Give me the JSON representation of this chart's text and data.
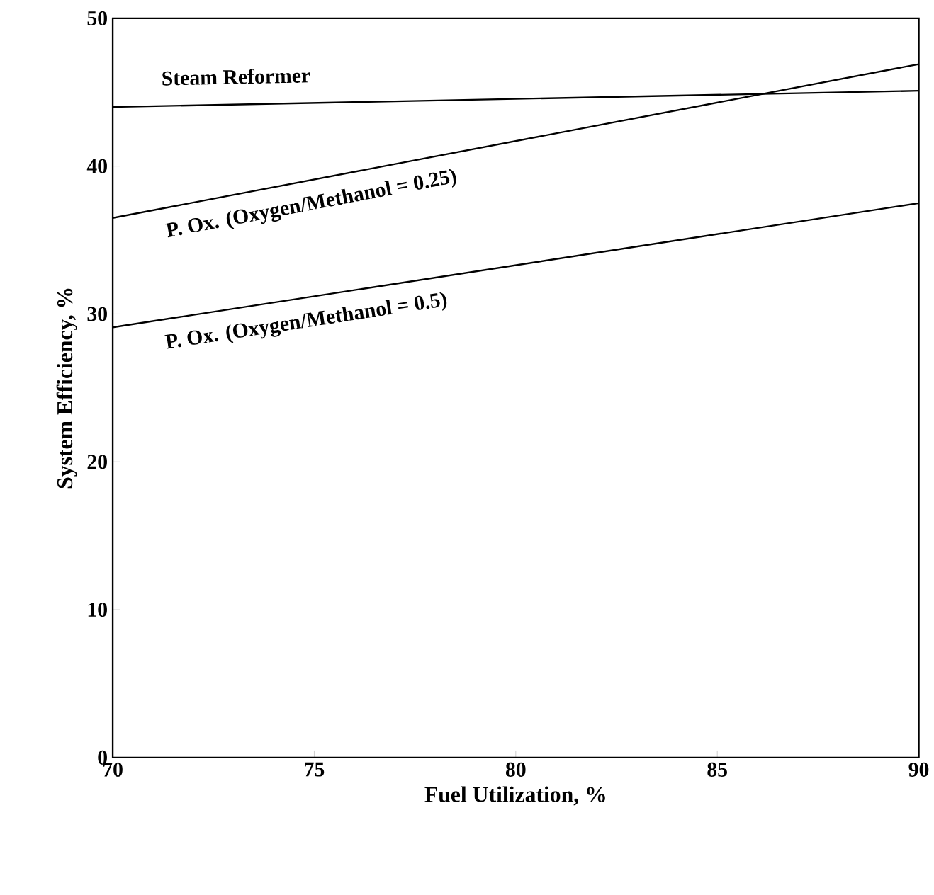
{
  "chart_data": {
    "type": "line",
    "xlabel": "Fuel Utilization, %",
    "ylabel": "System Efficiency, %",
    "x": [
      70,
      90
    ],
    "series": [
      {
        "name": "Steam Reformer",
        "color": "#000000",
        "values": [
          44.0,
          45.1
        ]
      },
      {
        "name": "P. Ox. (Oxygen/Methanol = 0.25)",
        "color": "#000000",
        "values": [
          36.5,
          46.9
        ]
      },
      {
        "name": "P. Ox. (Oxygen/Methanol = 0.5)",
        "color": "#000000",
        "values": [
          29.1,
          37.5
        ]
      }
    ],
    "xlim": [
      70,
      90
    ],
    "ylim": [
      0,
      50
    ],
    "xticks": [
      70,
      75,
      80,
      85,
      90
    ],
    "yticks": [
      0,
      10,
      20,
      30,
      40,
      50
    ],
    "grid": false,
    "legend": false,
    "marker": "none",
    "line_style": "solid"
  }
}
